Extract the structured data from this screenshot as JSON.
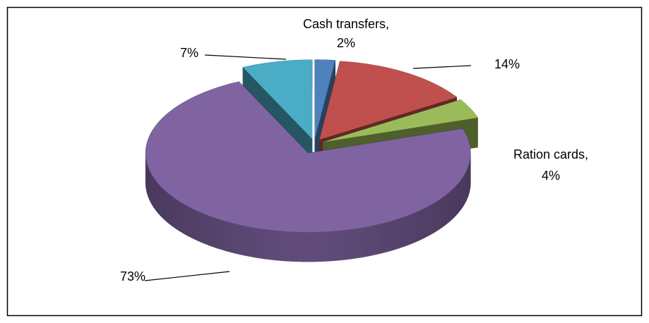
{
  "chart_data": {
    "type": "pie3d",
    "categories": [
      "Cash transfers,",
      null,
      "Ration cards,",
      null,
      null
    ],
    "values": [
      2,
      14,
      4,
      73,
      7
    ],
    "value_labels": [
      "2%",
      "14%",
      "4%",
      "73%",
      "7%"
    ],
    "colors": [
      "#4f81bd",
      "#c0504d",
      "#9bbb59",
      "#8064a2",
      "#4bacc6"
    ]
  }
}
